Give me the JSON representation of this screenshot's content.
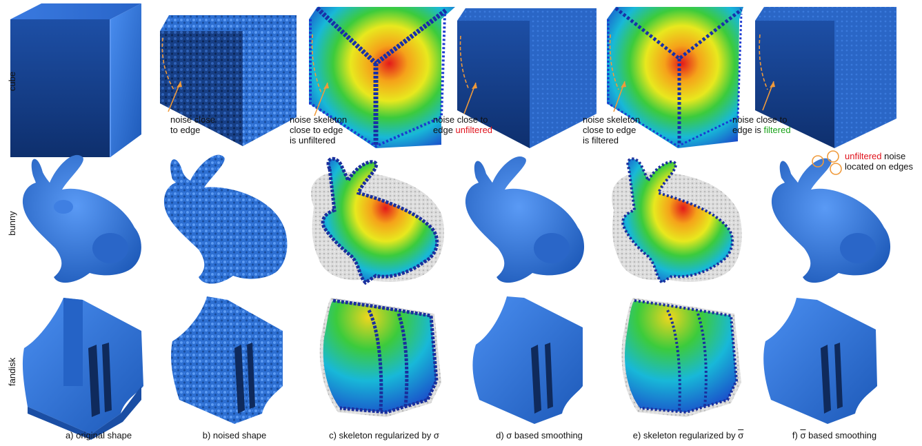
{
  "row_labels": [
    "cube",
    "bunny",
    "fandisk"
  ],
  "columns": [
    {
      "prefix": "a) original shape",
      "symbol": "",
      "suffix": ""
    },
    {
      "prefix": "b) noised shape",
      "symbol": "",
      "suffix": ""
    },
    {
      "prefix": "c) skeleton regularized by ",
      "symbol": "σ",
      "suffix": ""
    },
    {
      "prefix": "d) ",
      "symbol": "σ",
      "suffix": " based smoothing"
    },
    {
      "prefix": "e) skeleton regularized by ",
      "symbol": "σ",
      "suffix": ""
    },
    {
      "prefix": "f) ",
      "symbol": "σ",
      "suffix": " based smoothing"
    }
  ],
  "notes": {
    "b": {
      "line1": "noise close",
      "line2": "to edge"
    },
    "c": {
      "line1": "noise skeleton",
      "line2": "close to edge",
      "line3": "is unfiltered"
    },
    "d": {
      "line1": "noise close to",
      "line2_a": "edge ",
      "line2_b": "unfiltered"
    },
    "e": {
      "line1": "noise skeleton",
      "line2": "close to edge",
      "line3": "is filtered"
    },
    "f": {
      "line1": "noise close to",
      "line2_a": "edge is ",
      "line2_b": "filtered"
    },
    "bunny_f": {
      "line1_a": "unfiltered",
      "line1_b": " noise",
      "line2": "located on edges"
    }
  },
  "colors": {
    "mesh_blue": "#2a6fd0",
    "mesh_dark": "#163f88",
    "annotation_orange": "#f09a3a",
    "unfiltered_red": "#e0101a",
    "filtered_green": "#19a319",
    "halo_gray": "#cfcfcf"
  }
}
